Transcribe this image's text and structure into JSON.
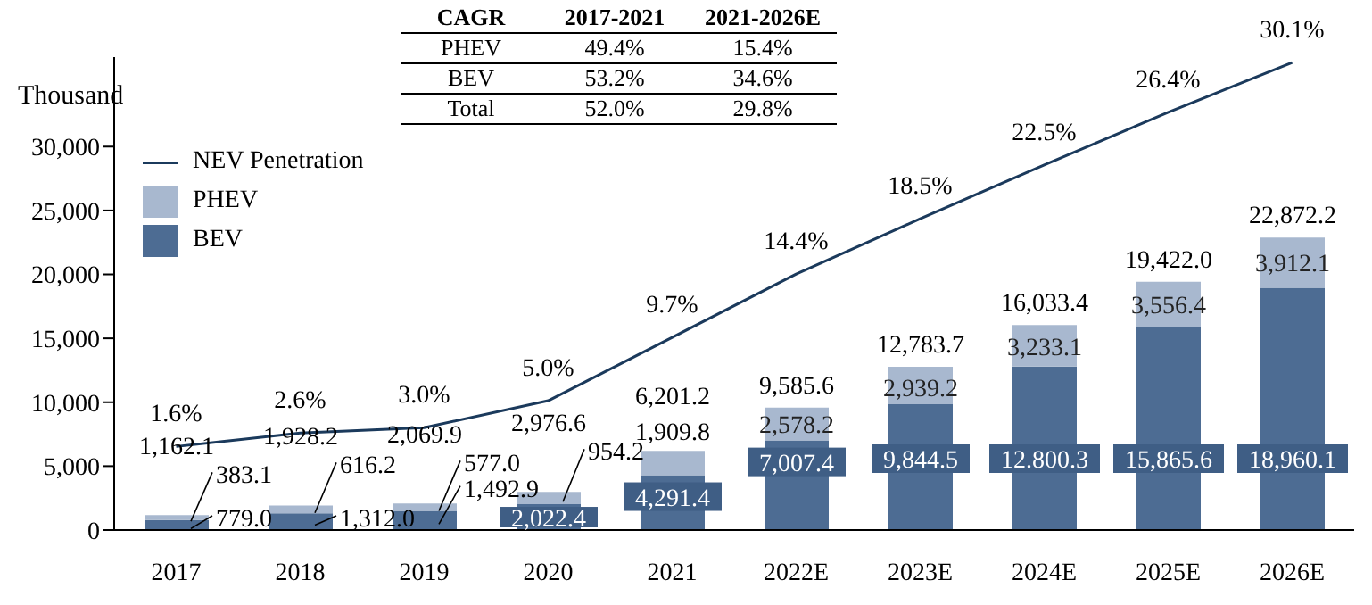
{
  "chart_data": {
    "type": "bar",
    "ylabel": "Thousand",
    "categories": [
      "2017",
      "2018",
      "2019",
      "2020",
      "2021",
      "2022E",
      "2023E",
      "2024E",
      "2025E",
      "2026E"
    ],
    "stacked": true,
    "ylim": [
      0,
      37000
    ],
    "yticks": [
      0,
      {
        "value": 5000,
        "label": "5,000"
      },
      {
        "value": 10000,
        "label": "10,000"
      },
      {
        "value": 15000,
        "label": "15,000"
      },
      {
        "value": 20000,
        "label": "20,000"
      },
      {
        "value": 25000,
        "label": "25,000"
      },
      {
        "value": 30000,
        "label": "30,000"
      }
    ],
    "y2lim": [
      -4.6,
      30.5
    ],
    "series": [
      {
        "name": "BEV",
        "color": "#4d6c93",
        "values": [
          779.0,
          1312.0,
          1492.9,
          2022.4,
          4291.4,
          7007.4,
          9844.5,
          12800.3,
          15865.6,
          18960.1
        ],
        "value_labels": [
          "779.0",
          "1,312.0",
          "1,492.9",
          "2,022.4",
          "4,291.4",
          "7,007.4",
          "9,844.5",
          "12.800.3",
          "15,865.6",
          "18,960.1"
        ]
      },
      {
        "name": "PHEV",
        "color": "#a8b8cf",
        "values": [
          383.1,
          616.2,
          577.0,
          954.2,
          1909.8,
          2578.2,
          2939.2,
          3233.1,
          3556.4,
          3912.1
        ],
        "value_labels": [
          "383.1",
          "616.2",
          "577.0",
          "954.2",
          "1,909.8",
          "2,578.2",
          "2,939.2",
          "3,233.1",
          "3,556.4",
          "3,912.1"
        ]
      },
      {
        "name": "NEV Penetration",
        "type": "line",
        "axis": "y2",
        "color": "#1b3a5c",
        "values": [
          1.6,
          2.6,
          3.0,
          5.0,
          9.7,
          14.4,
          18.5,
          22.5,
          26.4,
          30.1
        ],
        "value_labels": [
          "1.6%",
          "2.6%",
          "3.0%",
          "5.0%",
          "9.7%",
          "14.4%",
          "18.5%",
          "22.5%",
          "26.4%",
          "30.1%"
        ]
      }
    ],
    "totals": [
      "1,162.1",
      "1,928.2",
      "2,069.9",
      "2,976.6",
      "6,201.2",
      "9,585.6",
      "12,783.7",
      "16,033.4",
      "19,422.0",
      "22,872.2"
    ],
    "annotations": [
      "CAGR",
      "2017-2021",
      "2021-2026E",
      "PHEV",
      "49.4%",
      "15.4%",
      "BEV",
      "53.2%",
      "34.6%",
      "Total",
      "52.0%",
      "29.8%"
    ],
    "legend": "top left",
    "marker": "none",
    "line_style": "solid",
    "grid": false
  }
}
